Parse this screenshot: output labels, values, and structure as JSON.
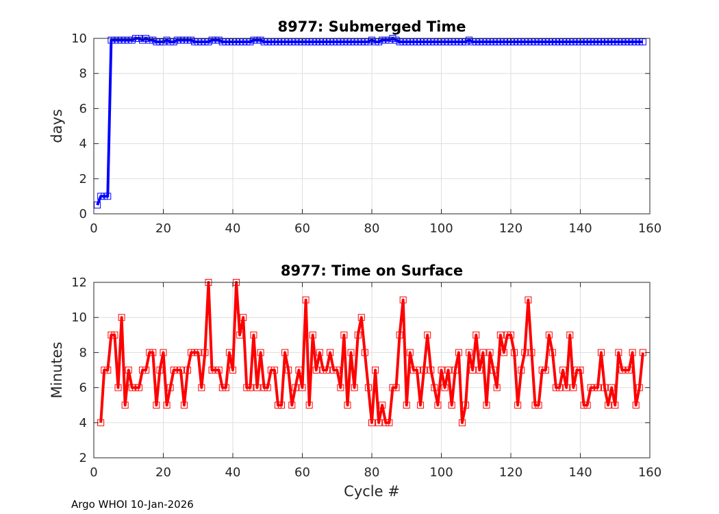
{
  "footer": "Argo WHOI 10-Jan-2026",
  "colors": {
    "submerged": "#0000ff",
    "surface": "#ff0000"
  },
  "chart_data": [
    {
      "type": "line",
      "title": "8977: Submerged Time",
      "xlabel": "",
      "ylabel": "days",
      "xlim": [
        0,
        160
      ],
      "ylim": [
        0,
        10
      ],
      "xticks": [
        "0",
        "20",
        "40",
        "60",
        "80",
        "100",
        "120",
        "140",
        "160"
      ],
      "yticks": [
        "0",
        "2",
        "4",
        "6",
        "8",
        "10"
      ],
      "grid": true,
      "marker": "square",
      "series": [
        {
          "x": [
            1,
            2,
            3,
            4,
            5,
            6,
            7,
            8,
            9,
            10,
            11,
            12,
            13,
            14,
            15,
            16,
            17,
            18,
            19,
            20,
            21,
            22,
            23,
            24,
            25,
            26,
            27,
            28,
            29,
            30,
            31,
            32,
            33,
            34,
            35,
            36,
            37,
            38,
            39,
            40,
            41,
            42,
            43,
            44,
            45,
            46,
            47,
            48,
            49,
            50,
            51,
            52,
            53,
            54,
            55,
            56,
            57,
            58,
            59,
            60,
            61,
            62,
            63,
            64,
            65,
            66,
            67,
            68,
            69,
            70,
            71,
            72,
            73,
            74,
            75,
            76,
            77,
            78,
            79,
            80,
            81,
            82,
            83,
            84,
            85,
            86,
            87,
            88,
            89,
            90,
            91,
            92,
            93,
            94,
            95,
            96,
            97,
            98,
            99,
            100,
            101,
            102,
            103,
            104,
            105,
            106,
            107,
            108,
            109,
            110,
            111,
            112,
            113,
            114,
            115,
            116,
            117,
            118,
            119,
            120,
            121,
            122,
            123,
            124,
            125,
            126,
            127,
            128,
            129,
            130,
            131,
            132,
            133,
            134,
            135,
            136,
            137,
            138,
            139,
            140,
            141,
            142,
            143,
            144,
            145,
            146,
            147,
            148,
            149,
            150,
            151,
            152,
            153,
            154,
            155,
            156,
            157,
            158
          ],
          "y": [
            0.5,
            1.0,
            1.0,
            1.0,
            9.9,
            9.9,
            9.9,
            9.9,
            9.9,
            9.9,
            9.9,
            10.0,
            10.0,
            9.9,
            10.0,
            9.9,
            9.9,
            9.8,
            9.8,
            9.8,
            9.9,
            9.8,
            9.8,
            9.9,
            9.9,
            9.9,
            9.9,
            9.9,
            9.8,
            9.8,
            9.8,
            9.8,
            9.8,
            9.9,
            9.9,
            9.9,
            9.8,
            9.8,
            9.8,
            9.8,
            9.8,
            9.8,
            9.8,
            9.8,
            9.8,
            9.9,
            9.9,
            9.9,
            9.8,
            9.8,
            9.8,
            9.8,
            9.8,
            9.8,
            9.8,
            9.8,
            9.8,
            9.8,
            9.8,
            9.8,
            9.8,
            9.8,
            9.8,
            9.8,
            9.8,
            9.8,
            9.8,
            9.8,
            9.8,
            9.8,
            9.8,
            9.8,
            9.8,
            9.8,
            9.8,
            9.8,
            9.8,
            9.8,
            9.8,
            9.9,
            9.8,
            9.8,
            9.9,
            9.9,
            9.9,
            10.0,
            9.9,
            9.8,
            9.8,
            9.8,
            9.8,
            9.8,
            9.8,
            9.8,
            9.8,
            9.8,
            9.8,
            9.8,
            9.8,
            9.8,
            9.8,
            9.8,
            9.8,
            9.8,
            9.8,
            9.8,
            9.8,
            9.9,
            9.8,
            9.8,
            9.8,
            9.8,
            9.8,
            9.8,
            9.8,
            9.8,
            9.8,
            9.8,
            9.8,
            9.8,
            9.8,
            9.8,
            9.8,
            9.8,
            9.8,
            9.8,
            9.8,
            9.8,
            9.8,
            9.8,
            9.8,
            9.8,
            9.8,
            9.8,
            9.8,
            9.8,
            9.8,
            9.8,
            9.8,
            9.8,
            9.8,
            9.8,
            9.8,
            9.8,
            9.8,
            9.8,
            9.8,
            9.8,
            9.8,
            9.8,
            9.8,
            9.8,
            9.8,
            9.8,
            9.8,
            9.8,
            9.8,
            9.8
          ]
        }
      ]
    },
    {
      "type": "line",
      "title": "8977: Time on Surface",
      "xlabel": "Cycle #",
      "ylabel": "Minutes",
      "xlim": [
        0,
        160
      ],
      "ylim": [
        2,
        12
      ],
      "xticks": [
        "0",
        "20",
        "40",
        "60",
        "80",
        "100",
        "120",
        "140",
        "160"
      ],
      "yticks": [
        "2",
        "4",
        "6",
        "8",
        "10",
        "12"
      ],
      "grid": true,
      "marker": "square",
      "series": [
        {
          "x": [
            2,
            3,
            4,
            5,
            6,
            7,
            8,
            9,
            10,
            11,
            12,
            13,
            14,
            15,
            16,
            17,
            18,
            19,
            20,
            21,
            22,
            23,
            24,
            25,
            26,
            27,
            28,
            29,
            30,
            31,
            32,
            33,
            34,
            35,
            36,
            37,
            38,
            39,
            40,
            41,
            42,
            43,
            44,
            45,
            46,
            47,
            48,
            49,
            50,
            51,
            52,
            53,
            54,
            55,
            56,
            57,
            58,
            59,
            60,
            61,
            62,
            63,
            64,
            65,
            66,
            67,
            68,
            69,
            70,
            71,
            72,
            73,
            74,
            75,
            76,
            77,
            78,
            79,
            80,
            81,
            82,
            83,
            84,
            85,
            86,
            87,
            88,
            89,
            90,
            91,
            92,
            93,
            94,
            95,
            96,
            97,
            98,
            99,
            100,
            101,
            102,
            103,
            104,
            105,
            106,
            107,
            108,
            109,
            110,
            111,
            112,
            113,
            114,
            115,
            116,
            117,
            118,
            119,
            120,
            121,
            122,
            123,
            124,
            125,
            126,
            127,
            128,
            129,
            130,
            131,
            132,
            133,
            134,
            135,
            136,
            137,
            138,
            139,
            140,
            141,
            142,
            143,
            144,
            145,
            146,
            147,
            148,
            149,
            150,
            151,
            152,
            153,
            154,
            155,
            156,
            157,
            158
          ],
          "y": [
            4,
            7,
            7,
            9,
            9,
            6,
            10,
            5,
            7,
            6,
            6,
            6,
            7,
            7,
            8,
            8,
            5,
            7,
            8,
            5,
            6,
            7,
            7,
            7,
            5,
            7,
            8,
            8,
            8,
            6,
            8,
            12,
            7,
            7,
            7,
            6,
            6,
            8,
            7,
            12,
            9,
            10,
            6,
            6,
            9,
            6,
            8,
            6,
            6,
            7,
            7,
            5,
            5,
            8,
            7,
            5,
            6,
            7,
            6,
            11,
            5,
            9,
            7,
            8,
            7,
            7,
            8,
            7,
            7,
            6,
            9,
            5,
            8,
            6,
            9,
            10,
            8,
            6,
            4,
            7,
            4,
            5,
            4,
            4,
            6,
            6,
            9,
            11,
            5,
            8,
            7,
            7,
            5,
            7,
            9,
            7,
            6,
            5,
            7,
            6,
            7,
            5,
            7,
            8,
            4,
            5,
            8,
            7,
            9,
            7,
            8,
            5,
            8,
            7,
            6,
            9,
            8,
            9,
            9,
            8,
            5,
            7,
            8,
            11,
            8,
            5,
            5,
            7,
            7,
            9,
            8,
            6,
            6,
            7,
            6,
            9,
            6,
            7,
            7,
            5,
            5,
            6,
            6,
            6,
            8,
            6,
            5,
            6,
            5,
            8,
            7,
            7,
            7,
            8,
            5,
            6,
            8
          ]
        }
      ]
    }
  ]
}
